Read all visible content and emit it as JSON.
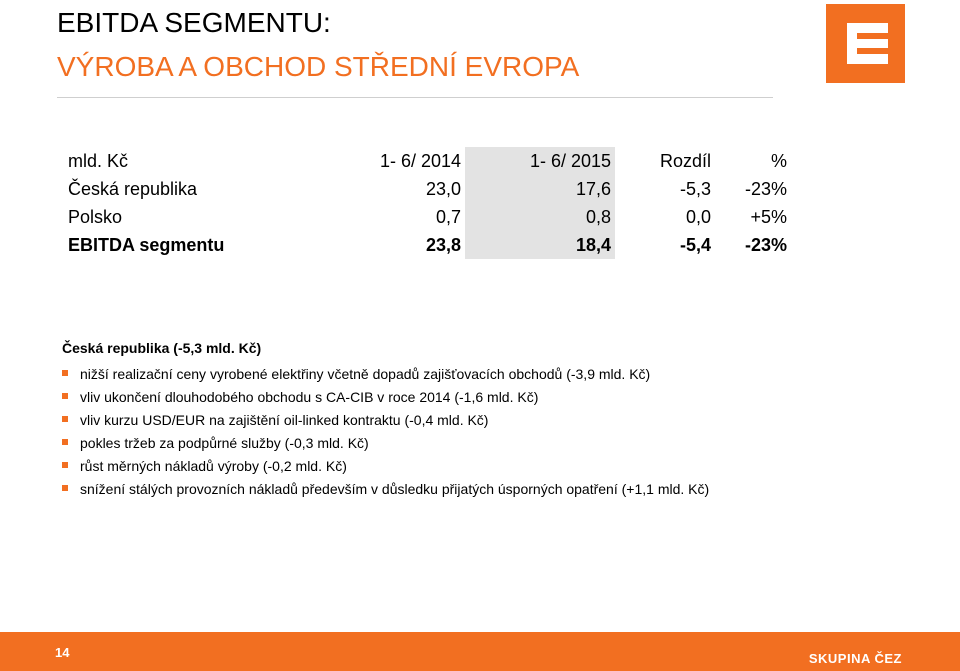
{
  "header": {
    "title_line1": "EBITDA SEGMENTU:",
    "title_line2": "VÝROBA A OBCHOD STŘEDNÍ EVROPA"
  },
  "logo": {
    "icon": "cez-logo-icon",
    "color": "#f26f21"
  },
  "table": {
    "headers": [
      "mld. Kč",
      "1- 6/ 2014",
      "1- 6/ 2015",
      "Rozdíl",
      "%"
    ],
    "rows": [
      [
        "Česká republika",
        "23,0",
        "17,6",
        "-5,3",
        "-23%"
      ],
      [
        "Polsko",
        "0,7",
        "0,8",
        "0,0",
        "+5%"
      ],
      [
        "EBITDA segmentu",
        "23,8",
        "18,4",
        "-5,4",
        "-23%"
      ]
    ]
  },
  "section": {
    "heading": "Česká republika (-5,3 mld. Kč)",
    "bullets": [
      "nižší realizační ceny vyrobené elektřiny včetně dopadů zajišťovacích obchodů (-3,9 mld. Kč)",
      "vliv ukončení dlouhodobého obchodu s CA-CIB v roce 2014 (-1,6 mld. Kč)",
      "vliv kurzu USD/EUR na zajištění oil-linked kontraktu (-0,4 mld. Kč)",
      "pokles tržeb za podpůrné služby (-0,3 mld. Kč)",
      "růst měrných nákladů výroby (-0,2 mld. Kč)",
      "snížení stálých provozních nákladů především v důsledku přijatých úsporných opatření (+1,1 mld. Kč)"
    ]
  },
  "footer": {
    "page_number": "14",
    "brand": "SKUPINA ČEZ",
    "color": "#f26f21"
  }
}
